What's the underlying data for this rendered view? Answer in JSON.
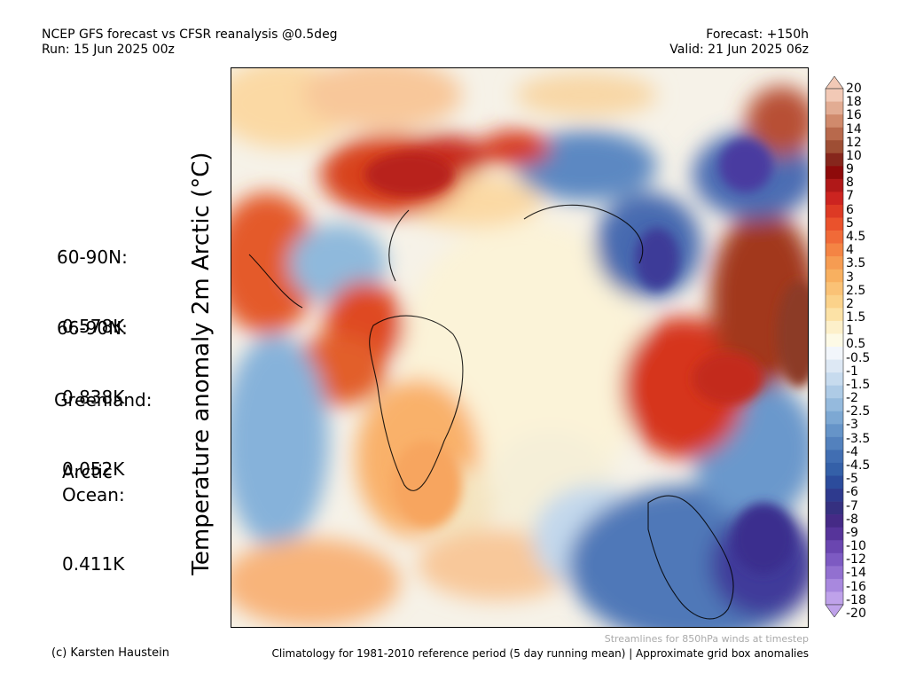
{
  "header": {
    "title": "NCEP GFS forecast vs CFSR reanalysis @0.5deg",
    "run": "Run: 15 Jun 2025 00z",
    "forecast": "Forecast: +150h",
    "valid": "Valid: 21 Jun 2025 06z"
  },
  "y_label": "Temperature anomaly 2m Arctic (°C)",
  "stats": [
    {
      "region": "60-90N:",
      "value": "0.578K"
    },
    {
      "region": "66-90N:",
      "value": "0.838K"
    },
    {
      "region": "Greenland:",
      "value": "0.052K"
    },
    {
      "region": "Arctic\nOcean:",
      "value": "0.411K"
    }
  ],
  "colorbar": {
    "labels": [
      "20",
      "18",
      "16",
      "14",
      "12",
      "10",
      "9",
      "8",
      "7",
      "6",
      "5",
      "4.5",
      "4",
      "3.5",
      "3",
      "2.5",
      "2",
      "1.5",
      "1",
      "0.5",
      "-0.5",
      "-1",
      "-1.5",
      "-2",
      "-2.5",
      "-3",
      "-3.5",
      "-4",
      "-4.5",
      "-5",
      "-6",
      "-7",
      "-8",
      "-9",
      "-10",
      "-12",
      "-14",
      "-16",
      "-18",
      "-20"
    ],
    "colors": [
      "#f2c9b6",
      "#e2ac93",
      "#d08a6c",
      "#b8694c",
      "#9e4e34",
      "#86261c",
      "#8e0a0a",
      "#b01818",
      "#cc2420",
      "#dd3a24",
      "#ea522c",
      "#f06a38",
      "#f48444",
      "#f69c52",
      "#f8b060",
      "#fac276",
      "#fbd28a",
      "#fce2a6",
      "#fdf0ca",
      "#fdfae6",
      "#f2f6fb",
      "#dde8f4",
      "#c7dbee",
      "#aecbe6",
      "#95badd",
      "#7da8d3",
      "#6694c8",
      "#5381bd",
      "#416eb2",
      "#3460a8",
      "#2c4c9c",
      "#2e3a8e",
      "#353080",
      "#452a86",
      "#56349a",
      "#6a46b0",
      "#7d5ac2",
      "#9270d0",
      "#a888de",
      "#bfa2ea"
    ]
  },
  "footer": {
    "credit": "(c) Karsten Haustein",
    "streamlines_note": "Streamlines for 850hPa winds at timestep",
    "climatology": "Climatology for 1981-2010 reference period (5 day running mean) | Approximate grid box anomalies"
  }
}
